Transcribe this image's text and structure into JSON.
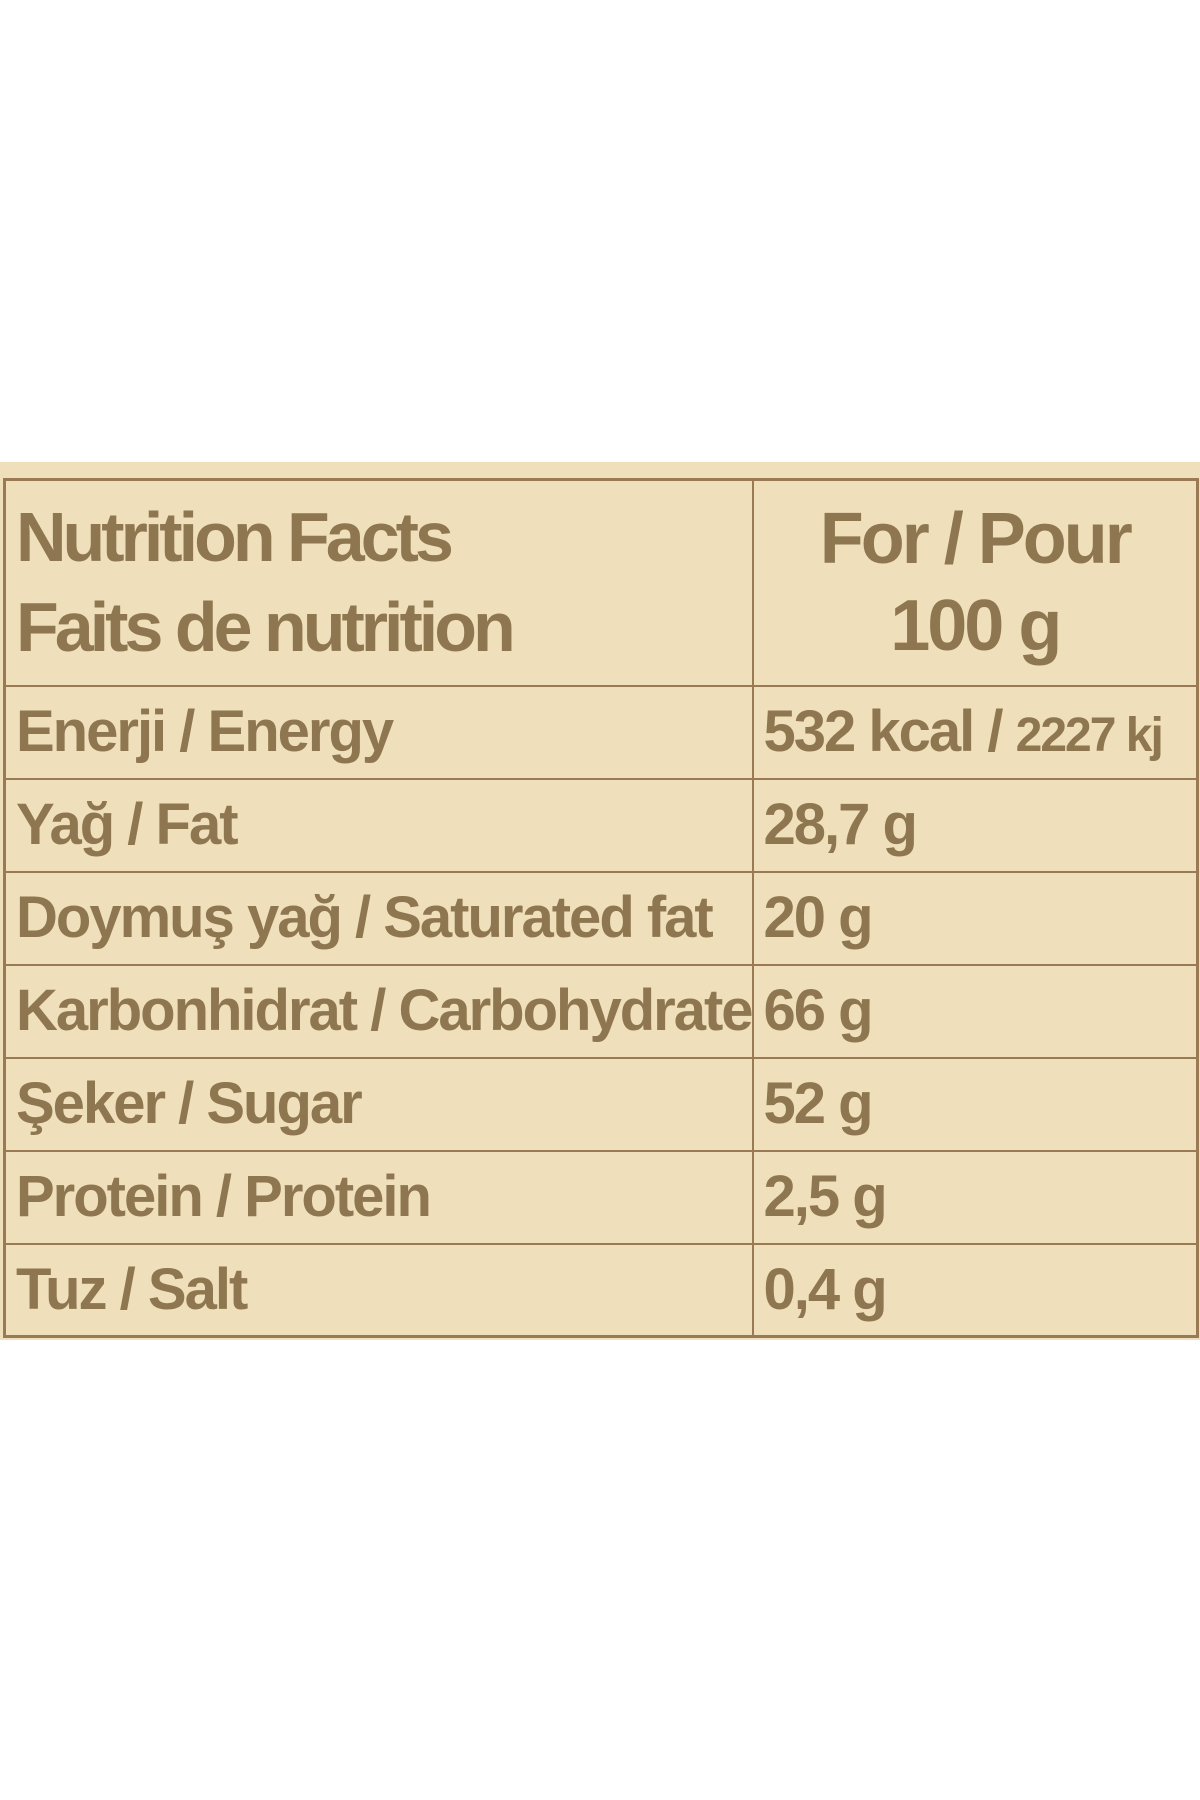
{
  "header": {
    "title_en": "Nutrition Facts",
    "title_fr": "Faits de nutrition",
    "per_label": "For / Pour",
    "per_amount": "100 g"
  },
  "rows": [
    {
      "nutrient": "Enerji / Energy",
      "value": "532 kcal / ",
      "value_secondary": "2227 kj"
    },
    {
      "nutrient": "Yağ / Fat",
      "value": "28,7 g"
    },
    {
      "nutrient": "Doymuş yağ / Saturated fat",
      "value": "20 g"
    },
    {
      "nutrient": "Karbonhidrat / Carbohydrate",
      "value": "66 g"
    },
    {
      "nutrient": "Şeker / Sugar",
      "value": "52 g"
    },
    {
      "nutrient": "Protein / Protein",
      "value": "2,5 g"
    },
    {
      "nutrient": "Tuz / Salt",
      "value": "0,4 g"
    }
  ],
  "colors": {
    "panel_background": "#efdfbb",
    "border": "#9a7a54",
    "text": "#8e7750"
  }
}
